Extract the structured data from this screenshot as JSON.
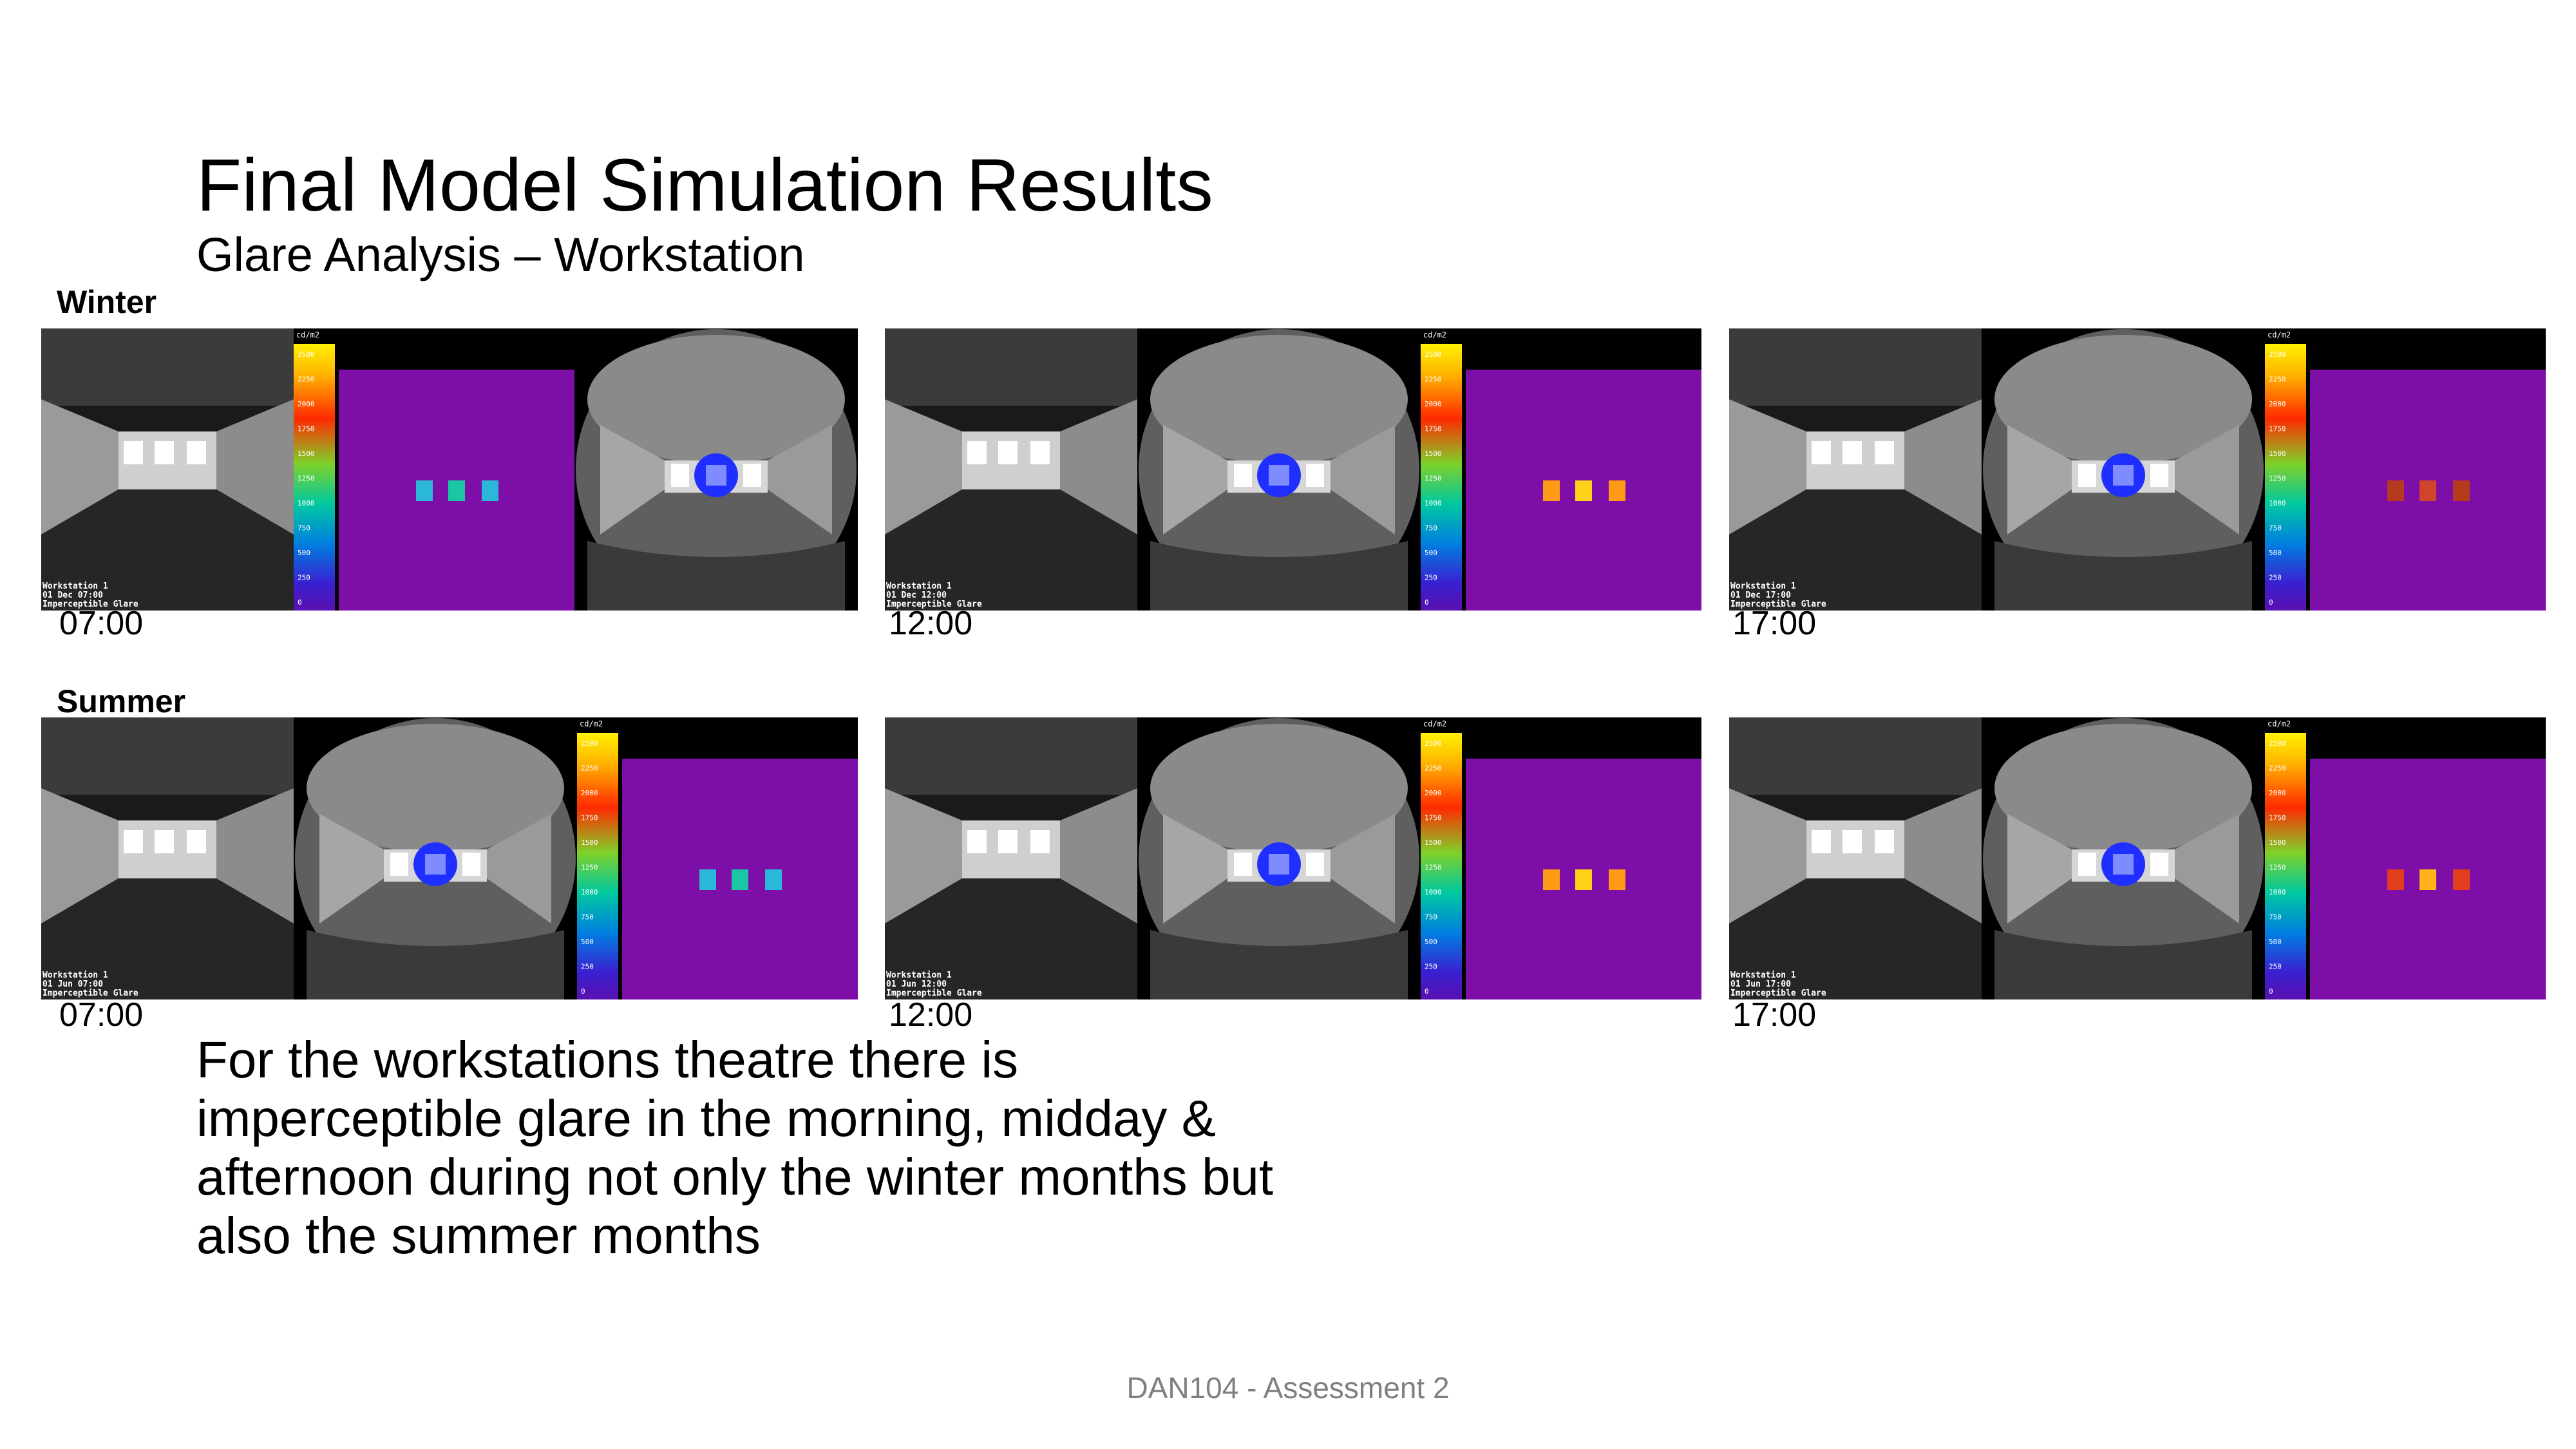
{
  "slide": {
    "title": "Final Model Simulation Results",
    "subtitle": "Glare Analysis – Workstation",
    "footer": "DAN104 - Assessment 2",
    "body": "For the workstations theatre there is imperceptible glare in the morning, midday & afternoon during not only the winter months but also the summer months"
  },
  "seasons": [
    {
      "label": "Winter",
      "panels": [
        {
          "time": "07:00",
          "layout": [
            "persp",
            "fc",
            "fish"
          ],
          "stamp": [
            "Workstation 1",
            "01 Dec 07:00",
            "Imperceptible Glare"
          ],
          "hotspot": "cyan"
        },
        {
          "time": "12:00",
          "layout": [
            "persp",
            "fish",
            "fc"
          ],
          "stamp": [
            "Workstation 1",
            "01 Dec 12:00",
            "Imperceptible Glare"
          ],
          "hotspot": "yellow"
        },
        {
          "time": "17:00",
          "layout": [
            "persp",
            "fish",
            "fc"
          ],
          "stamp": [
            "Workstation 1",
            "01 Dec 17:00",
            "Imperceptible Glare"
          ],
          "hotspot": "red"
        }
      ]
    },
    {
      "label": "Summer",
      "panels": [
        {
          "time": "07:00",
          "layout": [
            "persp",
            "fish",
            "fc"
          ],
          "stamp": [
            "Workstation 1",
            "01 Jun 07:00",
            "Imperceptible Glare"
          ],
          "hotspot": "cyan"
        },
        {
          "time": "12:00",
          "layout": [
            "persp",
            "fish",
            "fc"
          ],
          "stamp": [
            "Workstation 1",
            "01 Jun 12:00",
            "Imperceptible Glare"
          ],
          "hotspot": "yellow"
        },
        {
          "time": "17:00",
          "layout": [
            "persp",
            "fish",
            "fc"
          ],
          "stamp": [
            "Workstation 1",
            "01 Jun 17:00",
            "Imperceptible Glare"
          ],
          "hotspot": "orange"
        }
      ]
    }
  ],
  "legend": {
    "unit": "cd/m2",
    "ticks": [
      "2500",
      "2250",
      "2000",
      "1750",
      "1500",
      "1250",
      "1000",
      "750",
      "500",
      "250",
      "0"
    ]
  },
  "colors": {
    "falsecolor_bg": "#7d0fa8",
    "glare_source": "#1f2fff",
    "footer_text": "#7f7f7f"
  }
}
